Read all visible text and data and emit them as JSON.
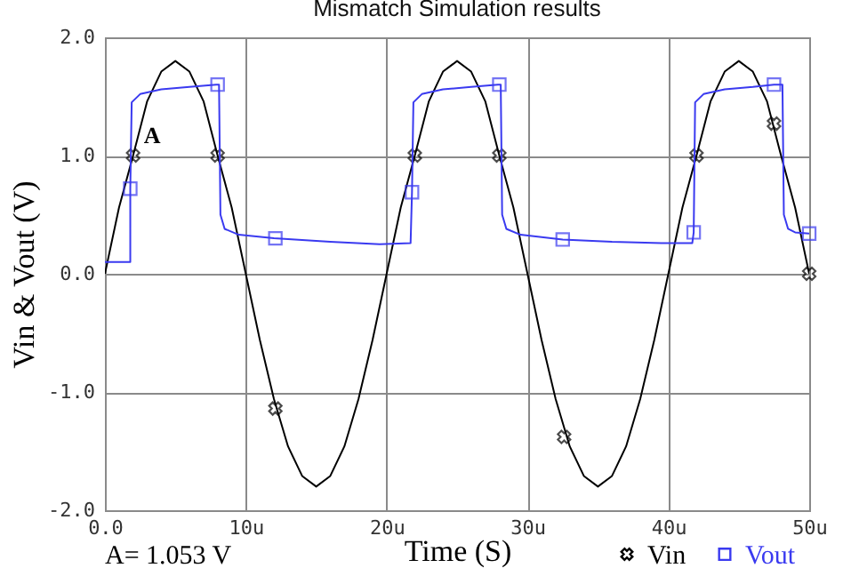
{
  "chart_data": {
    "type": "line",
    "title": "Mismatch Simulation results",
    "xlabel": "Time (S)",
    "ylabel": "Vin & Vout (V)",
    "xlim": [
      0,
      50
    ],
    "ylim": [
      -2,
      2
    ],
    "xticks": [
      {
        "value": 0,
        "label": "0.0"
      },
      {
        "value": 10,
        "label": "10u"
      },
      {
        "value": 20,
        "label": "20u"
      },
      {
        "value": 30,
        "label": "30u"
      },
      {
        "value": 40,
        "label": "40u"
      },
      {
        "value": 50,
        "label": "50u"
      }
    ],
    "yticks": [
      {
        "value": -2,
        "label": "-2.0"
      },
      {
        "value": -1,
        "label": "-1.0"
      },
      {
        "value": 0,
        "label": "0.0"
      },
      {
        "value": 1,
        "label": "1.0"
      },
      {
        "value": 2,
        "label": "2.0"
      }
    ],
    "grid": true,
    "legend": "bottom right",
    "annotations": [
      {
        "text": "A",
        "x": 2,
        "y": 1.0
      },
      "A= 1.053 V"
    ],
    "series": [
      {
        "name": "Vin",
        "color": "#000000",
        "x": [
          0,
          1,
          2,
          3,
          4,
          5,
          6,
          7,
          8,
          9,
          10,
          11,
          12,
          13,
          14,
          15,
          16,
          17,
          18,
          19,
          20,
          21,
          22,
          23,
          24,
          25,
          26,
          27,
          28,
          29,
          30,
          31,
          32,
          33,
          34,
          35,
          36,
          37,
          38,
          39,
          40,
          41,
          42,
          43,
          44,
          45,
          46,
          47,
          48,
          49,
          50
        ],
        "values": [
          0,
          0.56,
          1.0,
          1.46,
          1.71,
          1.8,
          1.71,
          1.46,
          1.0,
          0.56,
          0,
          -0.56,
          -1.06,
          -1.46,
          -1.71,
          -1.8,
          -1.71,
          -1.46,
          -1.06,
          -0.56,
          0,
          0.56,
          1.0,
          1.46,
          1.71,
          1.8,
          1.71,
          1.46,
          1.0,
          0.56,
          0,
          -0.56,
          -1.06,
          -1.46,
          -1.71,
          -1.8,
          -1.71,
          -1.46,
          -1.06,
          -0.56,
          0,
          0.56,
          1.0,
          1.46,
          1.71,
          1.8,
          1.71,
          1.46,
          1.0,
          0.56,
          0
        ]
      },
      {
        "type": "scatter",
        "marker": "cross",
        "color": "#000000",
        "x": [
          2,
          8,
          12.1,
          22,
          28,
          32.6,
          42,
          47.5,
          50
        ],
        "values": [
          1.0,
          1.0,
          -1.14,
          1.0,
          1.0,
          -1.38,
          1.0,
          1.27,
          0.0
        ]
      },
      {
        "name": "Vout",
        "color": "#3a3af0",
        "x": [
          0,
          1.8,
          1.8,
          1.9,
          2.5,
          4,
          6,
          7.9,
          8.1,
          8.2,
          8.5,
          9.5,
          12,
          16,
          19.5,
          21.7,
          21.8,
          21.9,
          22.5,
          24,
          26,
          27.9,
          28.1,
          28.2,
          28.5,
          29.5,
          32.5,
          36,
          39.5,
          41.7,
          41.8,
          41.9,
          42.5,
          44,
          46,
          47.5,
          48.1,
          48.2,
          48.5,
          49,
          50
        ],
        "values": [
          0.1,
          0.1,
          0.72,
          1.45,
          1.52,
          1.56,
          1.58,
          1.6,
          1.6,
          0.5,
          0.38,
          0.33,
          0.3,
          0.27,
          0.25,
          0.26,
          0.69,
          1.45,
          1.52,
          1.56,
          1.58,
          1.6,
          1.6,
          0.5,
          0.38,
          0.33,
          0.29,
          0.27,
          0.26,
          0.26,
          0.35,
          1.45,
          1.52,
          1.56,
          1.58,
          1.6,
          1.6,
          0.5,
          0.38,
          0.35,
          0.34
        ]
      },
      {
        "type": "scatter",
        "marker": "square",
        "color": "#3a3af0",
        "x": [
          1.8,
          8,
          12.1,
          21.8,
          28,
          32.5,
          41.8,
          47.5,
          50
        ],
        "values": [
          0.72,
          1.6,
          0.3,
          0.69,
          1.6,
          0.29,
          0.35,
          1.6,
          0.34
        ]
      }
    ]
  }
}
